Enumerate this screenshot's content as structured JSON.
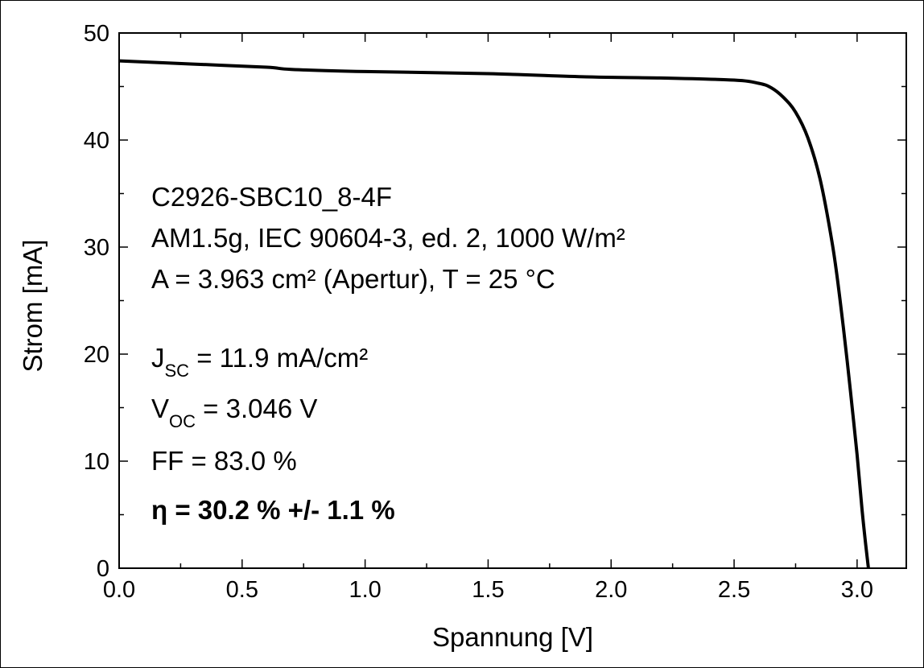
{
  "chart_data": {
    "type": "line",
    "title": "",
    "xlabel": "Spannung [V]",
    "ylabel": "Strom [mA]",
    "xlim": [
      0.0,
      3.2
    ],
    "ylim": [
      0,
      50
    ],
    "x_ticks": [
      "0.0",
      "0.5",
      "1.0",
      "1.5",
      "2.0",
      "2.5",
      "3.0"
    ],
    "y_ticks": [
      "0",
      "10",
      "20",
      "30",
      "40",
      "50"
    ],
    "grid": false,
    "series": [
      {
        "color": "#000000",
        "x": [
          0.0,
          0.3,
          0.6,
          0.7,
          1.0,
          1.5,
          1.9,
          2.2,
          2.5,
          2.6,
          2.65,
          2.7,
          2.75,
          2.8,
          2.85,
          2.9,
          2.93,
          2.96,
          2.98,
          3.0,
          3.02,
          3.035,
          3.046
        ],
        "y": [
          47.4,
          47.1,
          46.8,
          46.6,
          46.4,
          46.2,
          45.9,
          45.8,
          45.6,
          45.3,
          44.9,
          44.0,
          42.6,
          40.2,
          36.3,
          30.2,
          25.2,
          19.3,
          15.0,
          10.6,
          5.5,
          2.2,
          0.0
        ]
      }
    ],
    "annotations": {
      "sample": "C2926-SBC10_8-4F",
      "conditions": "AM1.5g, IEC 90604-3, ed. 2, 1000 W/m²",
      "area": "A = 3.963 cm² (Apertur), T = 25 °C",
      "jsc_symbol": "J",
      "jsc_sub": "SC",
      "jsc_value": " = 11.9 mA/cm²",
      "voc_symbol": "V",
      "voc_sub": "OC",
      "voc_value": " = 3.046 V",
      "ff": "FF = 83.0 %",
      "eta": "η = 30.2 % +/- 1.1 %"
    }
  }
}
